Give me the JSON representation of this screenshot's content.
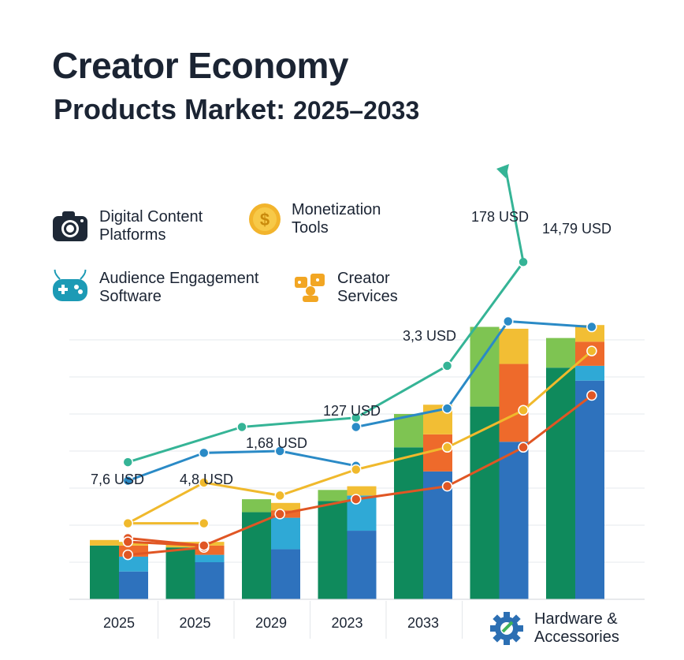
{
  "title": {
    "line1": "Creator Economy",
    "line2": "Products Market:",
    "years": "2025–2033"
  },
  "legend": [
    {
      "label_1": "Digital Content",
      "label_2": "Platforms",
      "icon": "camera-icon"
    },
    {
      "label_1": "Monetization",
      "label_2": "Tools",
      "icon": "coin-icon"
    },
    {
      "label_1": "Audience Engagement",
      "label_2": "Software",
      "icon": "gamepad-icon"
    },
    {
      "label_1": "Creator",
      "label_2": "Services",
      "icon": "people-icon"
    },
    {
      "label_1": "Hardware &",
      "label_2": "Accessories",
      "icon": "gear-icon"
    }
  ],
  "colors": {
    "dark_green": "#0f8a5c",
    "light_green": "#7ec452",
    "blue": "#2e72bd",
    "light_blue": "#2fa9d6",
    "orange": "#ee6a2b",
    "yellow": "#f2be34",
    "teal": "#35b496",
    "line_blue": "#2a8ac6",
    "line_yellow": "#f0b92c",
    "line_orange": "#e05624"
  },
  "chart_data": {
    "type": "bar",
    "categories": [
      "2025",
      "2025",
      "2029",
      "2023",
      "2033",
      "",
      ""
    ],
    "bar_groups": [
      {
        "left": {
          "dark_green": 14.5,
          "light_green": 0,
          "yellow": 1.5
        },
        "right": {
          "blue": 7.5,
          "light_blue": 4,
          "orange": 3,
          "yellow": 1
        }
      },
      {
        "left": {
          "dark_green": 14,
          "light_green": 0,
          "yellow": 1.5
        },
        "right": {
          "blue": 10,
          "light_blue": 2,
          "orange": 2.5,
          "yellow": 1
        }
      },
      {
        "left": {
          "dark_green": 23.5,
          "light_green": 3.5,
          "yellow": 0
        },
        "right": {
          "blue": 13.5,
          "light_blue": 8.5,
          "orange": 2,
          "yellow": 2
        }
      },
      {
        "left": {
          "dark_green": 26.5,
          "light_green": 3,
          "yellow": 0
        },
        "right": {
          "blue": 18.5,
          "light_blue": 9.5,
          "orange": 0,
          "yellow": 2.5
        }
      },
      {
        "left": {
          "dark_green": 41,
          "light_green": 9,
          "yellow": 0
        },
        "right": {
          "blue": 34.5,
          "light_blue": 0,
          "orange": 10,
          "yellow": 8
        }
      },
      {
        "left": {
          "dark_green": 52,
          "light_green": 21.5,
          "yellow": 0
        },
        "right": {
          "blue": 42.5,
          "light_blue": 0,
          "orange": 21,
          "yellow": 9.5
        }
      },
      {
        "left": {
          "dark_green": 62.5,
          "light_green": 8,
          "yellow": 0
        },
        "right": {
          "blue": 59,
          "light_blue": 4,
          "orange": 6.5,
          "yellow": 4.5
        }
      }
    ],
    "lines": [
      {
        "color_key": "teal",
        "x": [
          0.5,
          2,
          3.5,
          4.7,
          5.7
        ],
        "values": [
          37,
          46.5,
          49,
          63,
          91
        ]
      },
      {
        "color_key": "line_blue",
        "x": [
          0.5,
          1.5,
          2.5,
          3.5
        ],
        "values": [
          32,
          39.5,
          40,
          36
        ]
      },
      {
        "color_key": "line_blue",
        "x": [
          3.5,
          4.7,
          5.5,
          6.6
        ],
        "values": [
          46.5,
          51.5,
          75,
          73.5
        ]
      },
      {
        "color_key": "line_yellow",
        "x": [
          0.5,
          1.5,
          2.5,
          3.5,
          4.7,
          5.7,
          6.6
        ],
        "values": [
          20.5,
          31.5,
          28,
          35,
          41,
          51,
          67
        ]
      },
      {
        "color_key": "line_yellow",
        "x": [
          0.5,
          1.5
        ],
        "values": [
          20.5,
          20.5
        ]
      },
      {
        "color_key": "line_orange",
        "x": [
          0.5,
          1.5,
          2.5,
          3.5,
          4.7,
          5.7,
          6.6
        ],
        "values": [
          16.5,
          14.5,
          23,
          27,
          30.5,
          41,
          55
        ]
      },
      {
        "color_key": "line_orange",
        "x": [
          0.5,
          1.5
        ],
        "values": [
          12,
          14
        ]
      },
      {
        "color_key": "line_orange",
        "x": [
          0.5,
          1.5
        ],
        "values": [
          15.5,
          14.5
        ]
      }
    ],
    "trend_arrow": {
      "color_key": "teal"
    },
    "data_labels": [
      "7,6 USD",
      "4,8 USD",
      "1,68 USD",
      "127 USD",
      "3,3 USD",
      "178 USD",
      "14,79 USD"
    ],
    "ylim": [
      0,
      100
    ],
    "grid": true
  }
}
